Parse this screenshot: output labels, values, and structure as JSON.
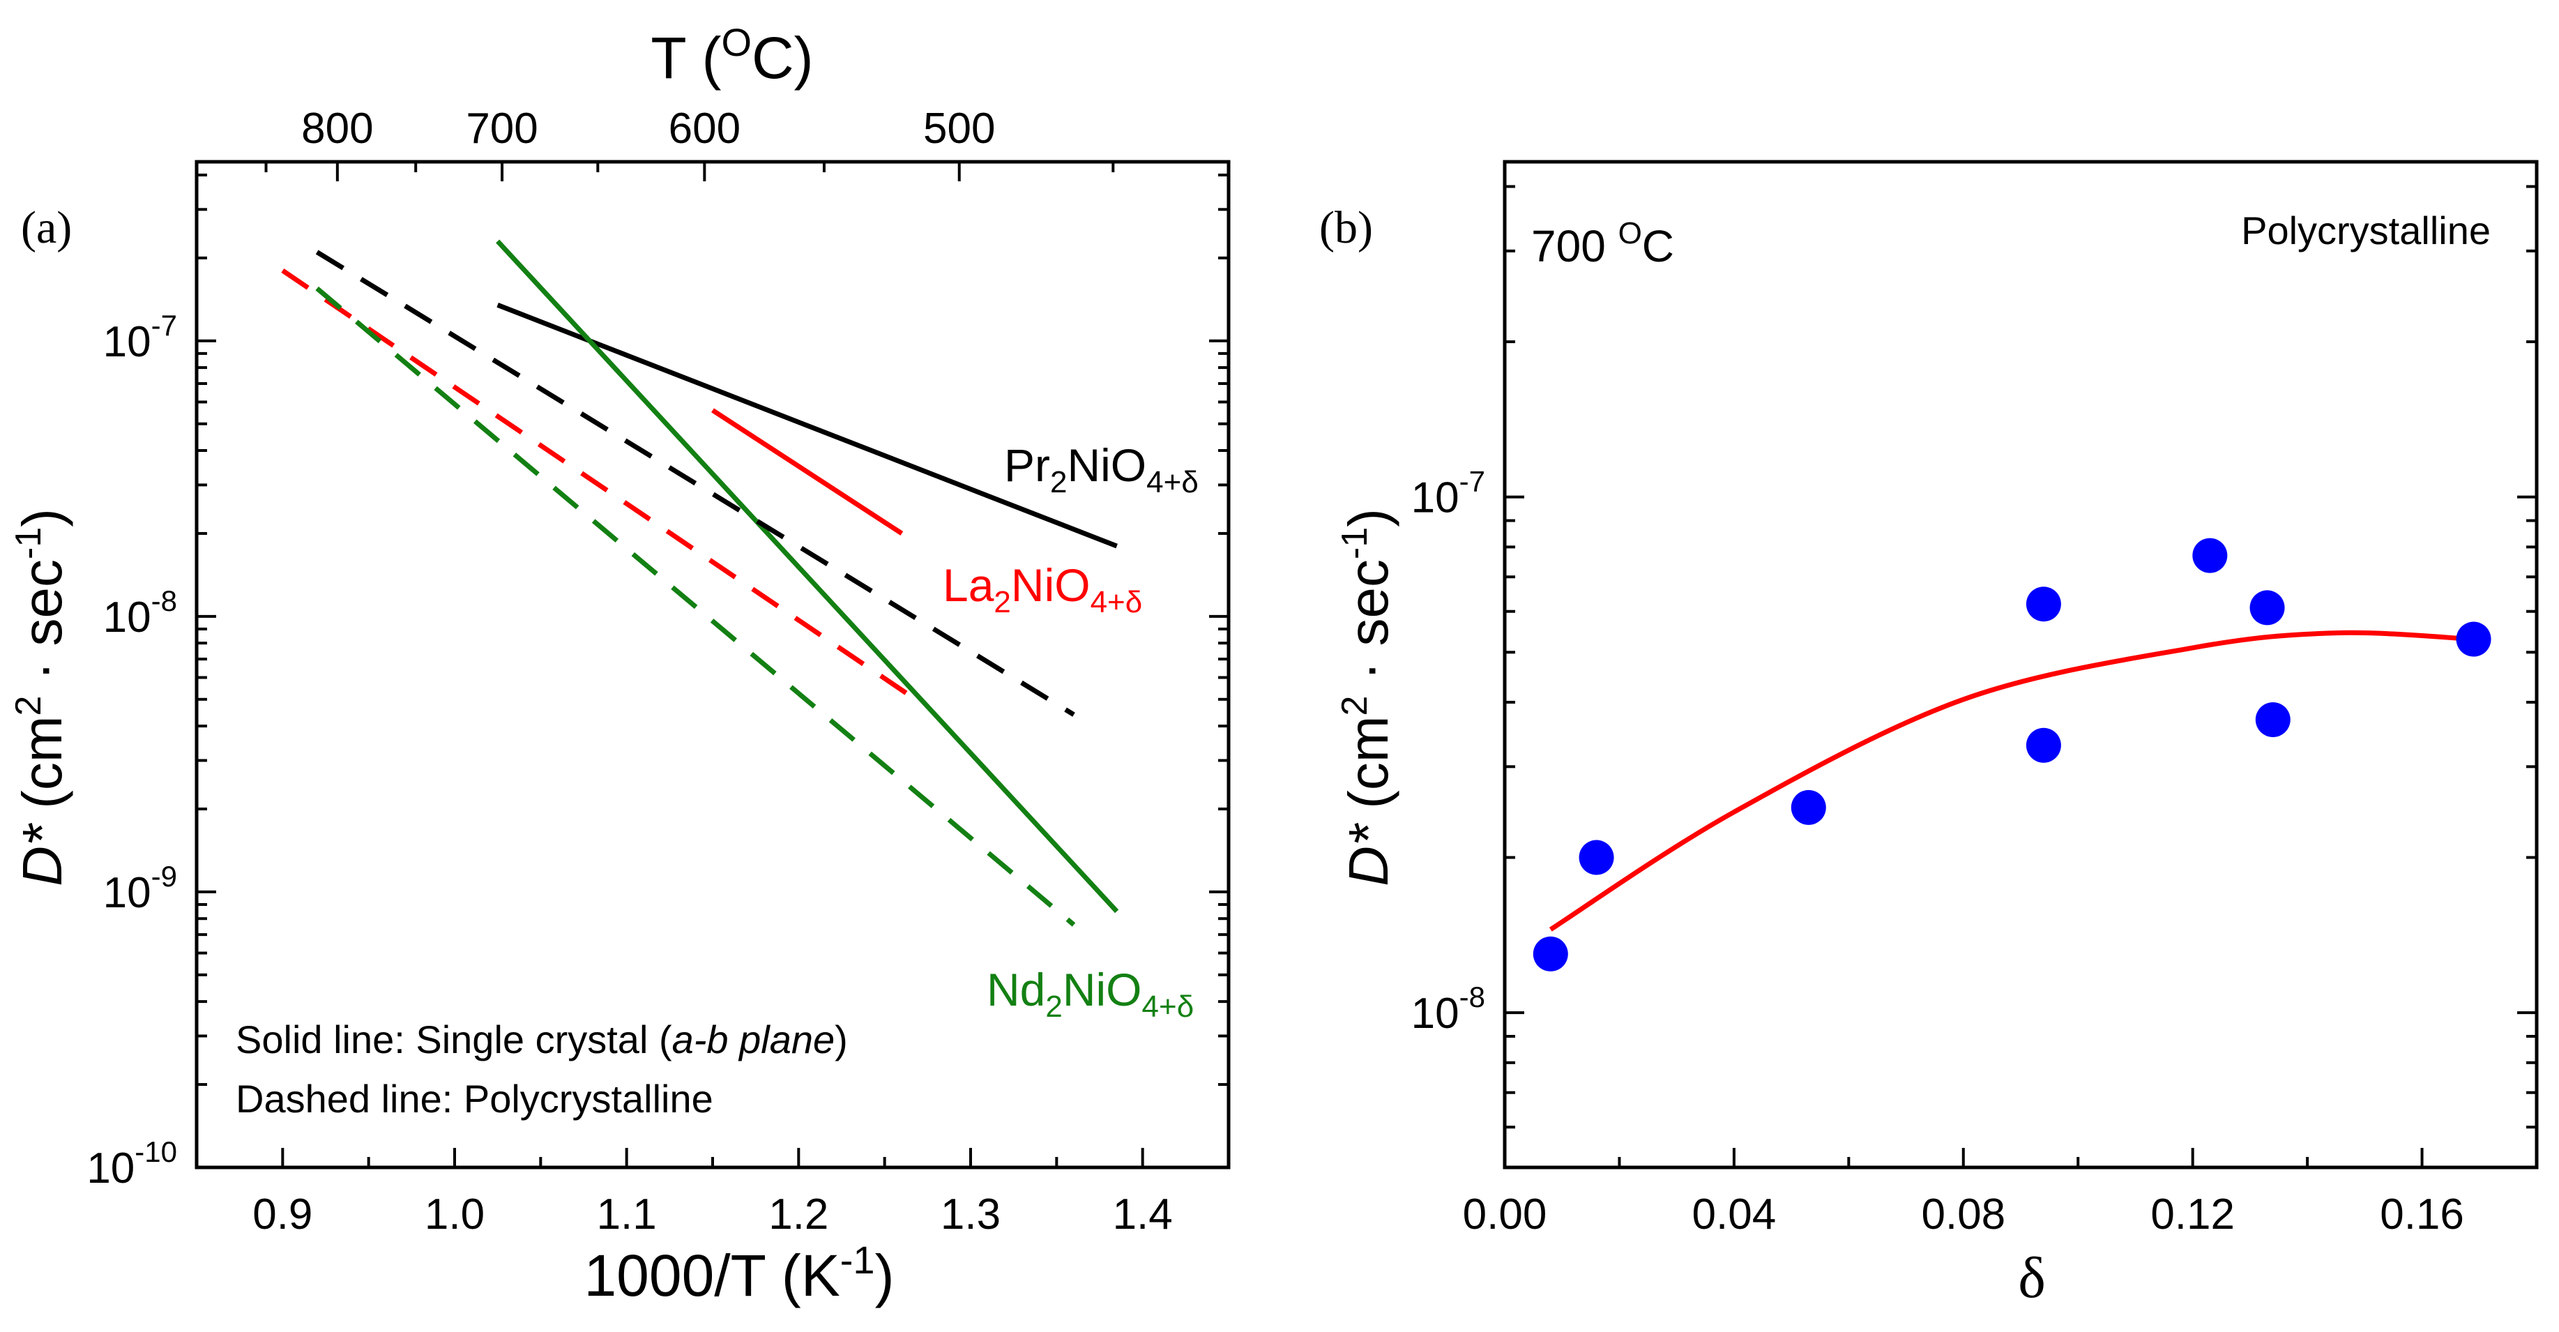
{
  "chart_data": [
    {
      "panel": "a",
      "panel_label": "(a)",
      "type": "line",
      "xlabel": "1000/T (K",
      "xlabel_sup": "-1",
      "xlabel_end": ")",
      "ylabel_var": "D*",
      "ylabel_unit_1": " (cm",
      "ylabel_sup_1": "2",
      "ylabel_unit_2": " ·  sec",
      "ylabel_sup_2": "-1",
      "ylabel_unit_3": ")",
      "yscale": "log",
      "xlim": [
        0.85,
        1.45
      ],
      "ylim_log10": [
        -10,
        -6.35
      ],
      "x_ticks": [
        0.9,
        1.0,
        1.1,
        1.2,
        1.3,
        1.4
      ],
      "x_tick_labels": [
        "0.9",
        "1.0",
        "1.1",
        "1.2",
        "1.3",
        "1.4"
      ],
      "y_tick_exponents": [
        -10,
        -9,
        -8,
        -7
      ],
      "y_tick_base": "10",
      "y_tick_exp_labels": [
        "-10",
        "-9",
        "-8",
        "-7"
      ],
      "top_axis": {
        "label": "T (",
        "label_sup": "O",
        "label_end": "C)",
        "ticks_celsius": [
          800,
          700,
          600,
          500
        ],
        "tick_labels": [
          "800",
          "700",
          "600",
          "500"
        ]
      },
      "series": [
        {
          "name": "Pr2NiO4+δ single crystal",
          "style": "solid",
          "color": "#000000",
          "points": [
            [
              1.025,
              1.35e-07
            ],
            [
              1.385,
              1.8e-08
            ]
          ]
        },
        {
          "name": "La2NiO4+δ single crystal",
          "style": "solid",
          "color": "#ff0000",
          "points": [
            [
              1.15,
              5.6e-08
            ],
            [
              1.26,
              2e-08
            ]
          ]
        },
        {
          "name": "Nd2NiO4+δ single crystal",
          "style": "solid",
          "color": "#138013",
          "points": [
            [
              1.025,
              2.3e-07
            ],
            [
              1.385,
              8.5e-10
            ]
          ]
        },
        {
          "name": "Pr2NiO4+δ polycrystalline",
          "style": "dashed",
          "color": "#000000",
          "points": [
            [
              0.92,
              2.1e-07
            ],
            [
              1.36,
              4.4e-09
            ]
          ]
        },
        {
          "name": "La2NiO4+δ polycrystalline",
          "style": "dashed",
          "color": "#ff0000",
          "points": [
            [
              0.9,
              1.8e-07
            ],
            [
              1.27,
              4.9e-09
            ]
          ]
        },
        {
          "name": "Nd2NiO4+δ polycrystalline",
          "style": "dashed",
          "color": "#138013",
          "points": [
            [
              0.92,
              1.55e-07
            ],
            [
              1.36,
              7.6e-10
            ]
          ]
        }
      ],
      "series_labels": [
        {
          "base": "Pr",
          "sub1": "2",
          "mid": "NiO",
          "sub2": "4+δ",
          "color": "#000000"
        },
        {
          "base": "La",
          "sub1": "2",
          "mid": "NiO",
          "sub2": "4+δ",
          "color": "#ff0000"
        },
        {
          "base": "Nd",
          "sub1": "2",
          "mid": "NiO",
          "sub2": "4+δ",
          "color": "#138013"
        }
      ],
      "note_line1_a": "Solid line: Single crystal (",
      "note_line1_italic": "a-b plane",
      "note_line1_b": ")",
      "note_line2": "Dashed line: Polycrystalline"
    },
    {
      "panel": "b",
      "panel_label": "(b)",
      "type": "scatter",
      "xlabel": "δ",
      "ylabel_var": "D*",
      "ylabel_unit_1": " (cm",
      "ylabel_sup_1": "2",
      "ylabel_unit_2": " ·  sec",
      "ylabel_sup_2": "-1",
      "ylabel_unit_3": ")",
      "yscale": "log",
      "xlim": [
        0.0,
        0.18
      ],
      "ylim_log10": [
        -8.3,
        -6.35
      ],
      "x_ticks": [
        0.0,
        0.04,
        0.08,
        0.12,
        0.16
      ],
      "x_tick_labels": [
        "0.00",
        "0.04",
        "0.08",
        "0.12",
        "0.16"
      ],
      "y_tick_exponents": [
        -8,
        -7
      ],
      "y_tick_base": "10",
      "y_tick_exp_labels": [
        "-8",
        "-7"
      ],
      "temperature_label": "700 ",
      "temperature_sup": "O",
      "temperature_end": "C",
      "sample_label": "Polycrystalline",
      "points": [
        {
          "x": 0.008,
          "y": 1.3e-08
        },
        {
          "x": 0.016,
          "y": 2e-08
        },
        {
          "x": 0.053,
          "y": 2.5e-08
        },
        {
          "x": 0.094,
          "y": 6.2e-08
        },
        {
          "x": 0.094,
          "y": 3.3e-08
        },
        {
          "x": 0.123,
          "y": 7.7e-08
        },
        {
          "x": 0.133,
          "y": 6.1e-08
        },
        {
          "x": 0.134,
          "y": 3.7e-08
        },
        {
          "x": 0.169,
          "y": 5.3e-08
        }
      ],
      "point_color": "#0000ff",
      "fit": {
        "color": "#ff0000",
        "points": [
          [
            0.008,
            1.45e-08
          ],
          [
            0.04,
            2.45e-08
          ],
          [
            0.08,
            4.05e-08
          ],
          [
            0.12,
            5.1e-08
          ],
          [
            0.145,
            5.45e-08
          ],
          [
            0.169,
            5.3e-08
          ]
        ]
      }
    }
  ]
}
